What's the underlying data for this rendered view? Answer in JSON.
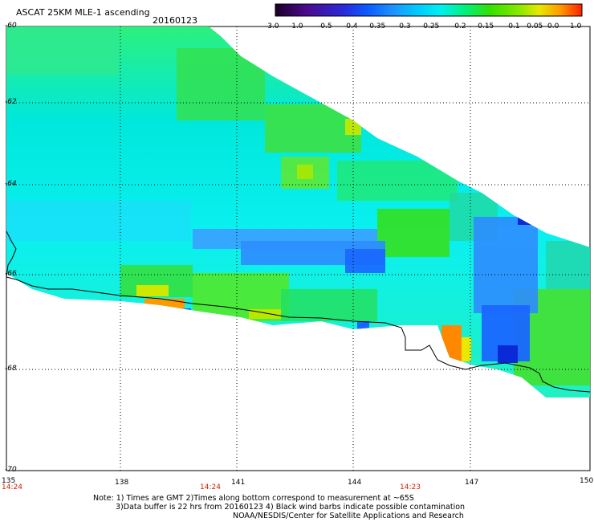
{
  "header": {
    "title": "ASCAT 25KM MLE-1 ascending",
    "date": "20160123"
  },
  "colorbar": {
    "labels": [
      "-3.0",
      "-1.0",
      "-0.5",
      "-0.4",
      "-0.35",
      "-0.3",
      "-0.25",
      "-0.2",
      "-0.15",
      "-0.1",
      "-0.05",
      "0.0",
      "1.0"
    ],
    "stops": [
      "#1a0026",
      "#4b0a8c",
      "#2a2ad8",
      "#0a5bff",
      "#1e90ff",
      "#00c8ff",
      "#00f0ee",
      "#00f07a",
      "#33e000",
      "#8fe800",
      "#e8e800",
      "#ff9900",
      "#ff2000"
    ]
  },
  "axes": {
    "lat_labels": [
      "-60",
      "-62",
      "-64",
      "-66",
      "-68",
      "-70"
    ],
    "lon_labels": [
      "135",
      "138",
      "141",
      "144",
      "147",
      "150"
    ]
  },
  "times": [
    "14:24",
    "14:24",
    "14:23"
  ],
  "notes": {
    "line1": "Note: 1) Times are GMT 2)Times along bottom correspond to measurement at ~65S",
    "line2": "3)Data buffer is 22 hrs from 20160123 4) Black wind barbs indicate possible contamination",
    "line3": "NOAA/NESDIS/Center for Satellite Applications and Research"
  }
}
